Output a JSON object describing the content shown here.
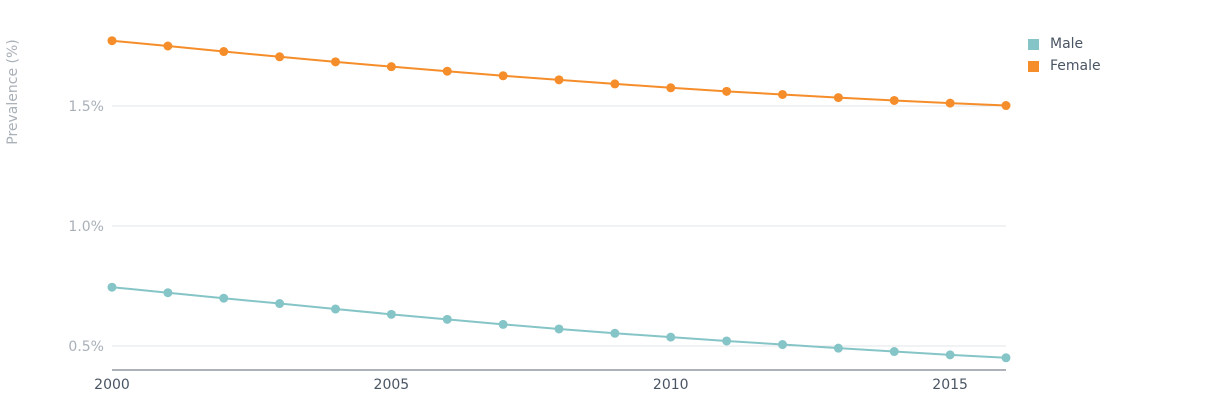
{
  "chart_data": {
    "type": "line",
    "ylabel": "Prevalence (%)",
    "x": [
      2000,
      2001,
      2002,
      2003,
      2004,
      2005,
      2006,
      2007,
      2008,
      2009,
      2010,
      2011,
      2012,
      2013,
      2014,
      2015,
      2016
    ],
    "x_ticks": [
      2000,
      2005,
      2010,
      2015
    ],
    "x_tick_labels": [
      "2000",
      "2005",
      "2010",
      "2015"
    ],
    "y_ticks": [
      0.5,
      1.0,
      1.5
    ],
    "y_tick_labels": [
      "0.5%",
      "1.0%",
      "1.5%"
    ],
    "ylim": [
      0.4,
      1.8
    ],
    "grid": true,
    "legend_position": "top-right",
    "series": [
      {
        "name": "Male",
        "color": "#86c5c7",
        "values": [
          0.745,
          0.722,
          0.699,
          0.677,
          0.654,
          0.632,
          0.611,
          0.59,
          0.571,
          0.553,
          0.537,
          0.521,
          0.506,
          0.491,
          0.477,
          0.463,
          0.451
        ]
      },
      {
        "name": "Female",
        "color": "#f58d2a",
        "values": [
          1.772,
          1.75,
          1.727,
          1.705,
          1.684,
          1.664,
          1.645,
          1.626,
          1.609,
          1.592,
          1.576,
          1.561,
          1.548,
          1.535,
          1.523,
          1.512,
          1.502
        ]
      }
    ]
  }
}
